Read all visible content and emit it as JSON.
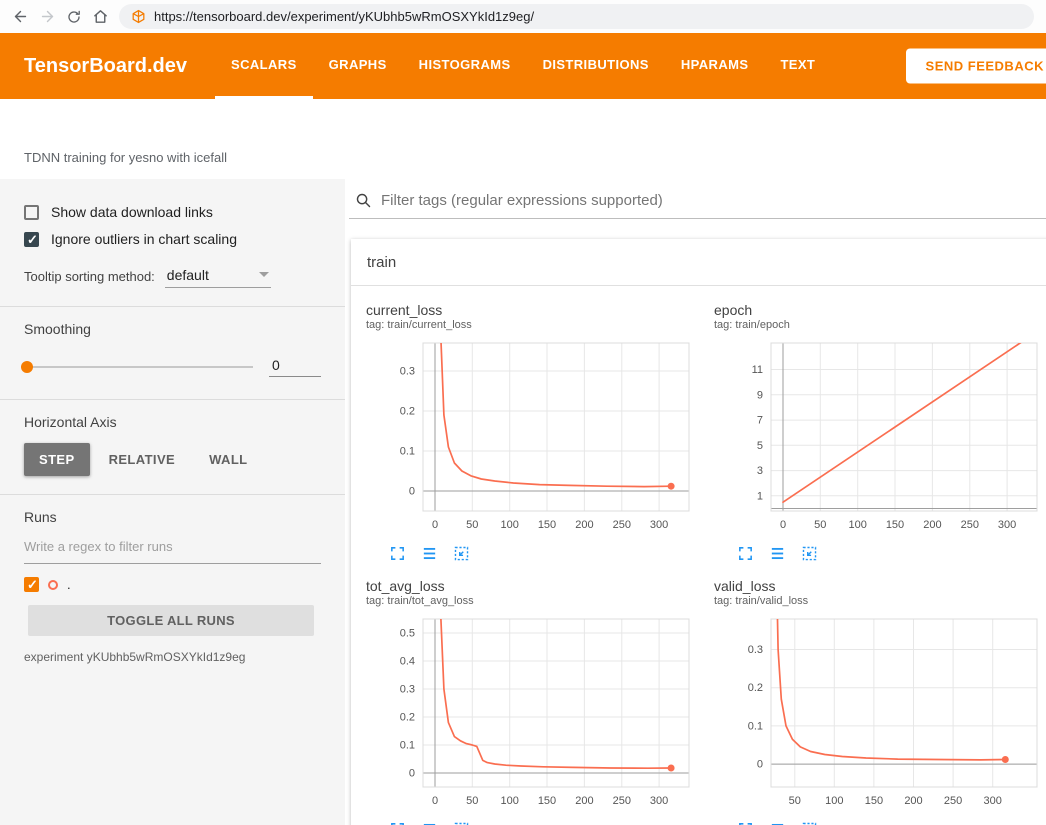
{
  "colors": {
    "header_bg": "#f57c00",
    "accent": "#f57c00",
    "line": "#fa6e50",
    "tool_icon_blue": "#2196f3",
    "checkbox_dark": "#37474f"
  },
  "icons": {
    "back": "arrow-left",
    "forward": "arrow-right",
    "reload": "refresh-circular-arrow",
    "home": "house",
    "favicon": "tensorboard-logo-box",
    "search": "magnifier",
    "dropdown": "triangle-down-caret",
    "chart_tools": [
      "expand-corners",
      "horizontal-lines",
      "fit-domain-dashed-box"
    ]
  },
  "browser": {
    "url": "https://tensorboard.dev/experiment/yKUbhb5wRmOSXYkId1z9eg/"
  },
  "header": {
    "brand": "TensorBoard.dev",
    "tabs": [
      {
        "label": "SCALARS",
        "active": true
      },
      {
        "label": "GRAPHS",
        "active": false
      },
      {
        "label": "HISTOGRAMS",
        "active": false
      },
      {
        "label": "DISTRIBUTIONS",
        "active": false
      },
      {
        "label": "HPARAMS",
        "active": false
      },
      {
        "label": "TEXT",
        "active": false
      }
    ],
    "feedback_button": "SEND FEEDBACK"
  },
  "experiment": {
    "title": "TDNN training for yesno with icefall",
    "id_label": "experiment yKUbhb5wRmOSXYkId1z9eg"
  },
  "sidebar": {
    "show_download": {
      "label": "Show data download links",
      "checked": false
    },
    "ignore_outliers": {
      "label": "Ignore outliers in chart scaling",
      "checked": true
    },
    "tooltip_sorting": {
      "label": "Tooltip sorting method:",
      "value": "default"
    },
    "smoothing": {
      "label": "Smoothing",
      "value": "0"
    },
    "horizontal_axis": {
      "label": "Horizontal Axis",
      "options": [
        {
          "label": "STEP",
          "selected": true
        },
        {
          "label": "RELATIVE",
          "selected": false
        },
        {
          "label": "WALL",
          "selected": false
        }
      ]
    },
    "runs": {
      "label": "Runs",
      "filter_placeholder": "Write a regex to filter runs",
      "run": {
        "label": ".",
        "checked": true
      },
      "toggle_all": "TOGGLE ALL RUNS"
    }
  },
  "main": {
    "filter_placeholder": "Filter tags (regular expressions supported)",
    "section_title": "train"
  },
  "chart_data": [
    {
      "type": "line",
      "title": "current_loss",
      "tag": "tag: train/current_loss",
      "series_run": ".",
      "x": [
        3,
        5,
        8,
        12,
        18,
        26,
        36,
        48,
        62,
        80,
        105,
        140,
        180,
        230,
        280,
        316
      ],
      "y": [
        3,
        0.9,
        0.38,
        0.19,
        0.11,
        0.07,
        0.05,
        0.038,
        0.03,
        0.025,
        0.02,
        0.016,
        0.014,
        0.012,
        0.011,
        0.012
      ],
      "xticks": [
        0,
        50,
        100,
        150,
        200,
        250,
        300
      ],
      "yticks": [
        0,
        0.1,
        0.2,
        0.3
      ],
      "xlim": [
        -16,
        340
      ],
      "ylim": [
        -0.05,
        0.37
      ],
      "end_dot": true
    },
    {
      "type": "line",
      "title": "epoch",
      "tag": "tag: train/epoch",
      "series_run": ".",
      "x": [
        0,
        320
      ],
      "y": [
        0.5,
        13.2
      ],
      "xticks": [
        0,
        50,
        100,
        150,
        200,
        250,
        300
      ],
      "yticks": [
        1,
        3,
        5,
        7,
        9,
        11
      ],
      "xlim": [
        -16,
        340
      ],
      "ylim": [
        -0.2,
        13.1
      ],
      "end_dot": false
    },
    {
      "type": "line",
      "title": "tot_avg_loss",
      "tag": "tag: train/tot_avg_loss",
      "series_run": ".",
      "x": [
        3,
        5,
        8,
        12,
        18,
        26,
        34,
        42,
        50,
        56,
        60,
        64,
        70,
        80,
        95,
        115,
        145,
        185,
        235,
        285,
        316
      ],
      "y": [
        3,
        1.2,
        0.55,
        0.3,
        0.18,
        0.13,
        0.115,
        0.105,
        0.1,
        0.095,
        0.07,
        0.045,
        0.037,
        0.032,
        0.028,
        0.025,
        0.022,
        0.02,
        0.018,
        0.017,
        0.018
      ],
      "xticks": [
        0,
        50,
        100,
        150,
        200,
        250,
        300
      ],
      "yticks": [
        0,
        0.1,
        0.2,
        0.3,
        0.4,
        0.5
      ],
      "xlim": [
        -16,
        340
      ],
      "ylim": [
        -0.05,
        0.55
      ],
      "end_dot": true
    },
    {
      "type": "line",
      "title": "valid_loss",
      "tag": "tag: train/valid_loss",
      "series_run": ".",
      "x": [
        24,
        26,
        29,
        33,
        39,
        47,
        57,
        70,
        88,
        110,
        140,
        180,
        230,
        285,
        316
      ],
      "y": [
        2,
        0.6,
        0.3,
        0.17,
        0.1,
        0.065,
        0.045,
        0.033,
        0.025,
        0.02,
        0.016,
        0.013,
        0.012,
        0.011,
        0.012
      ],
      "xticks": [
        50,
        100,
        150,
        200,
        250,
        300
      ],
      "yticks": [
        0,
        0.1,
        0.2,
        0.3
      ],
      "xlim": [
        20,
        356
      ],
      "ylim": [
        -0.06,
        0.38
      ],
      "end_dot": true
    }
  ]
}
